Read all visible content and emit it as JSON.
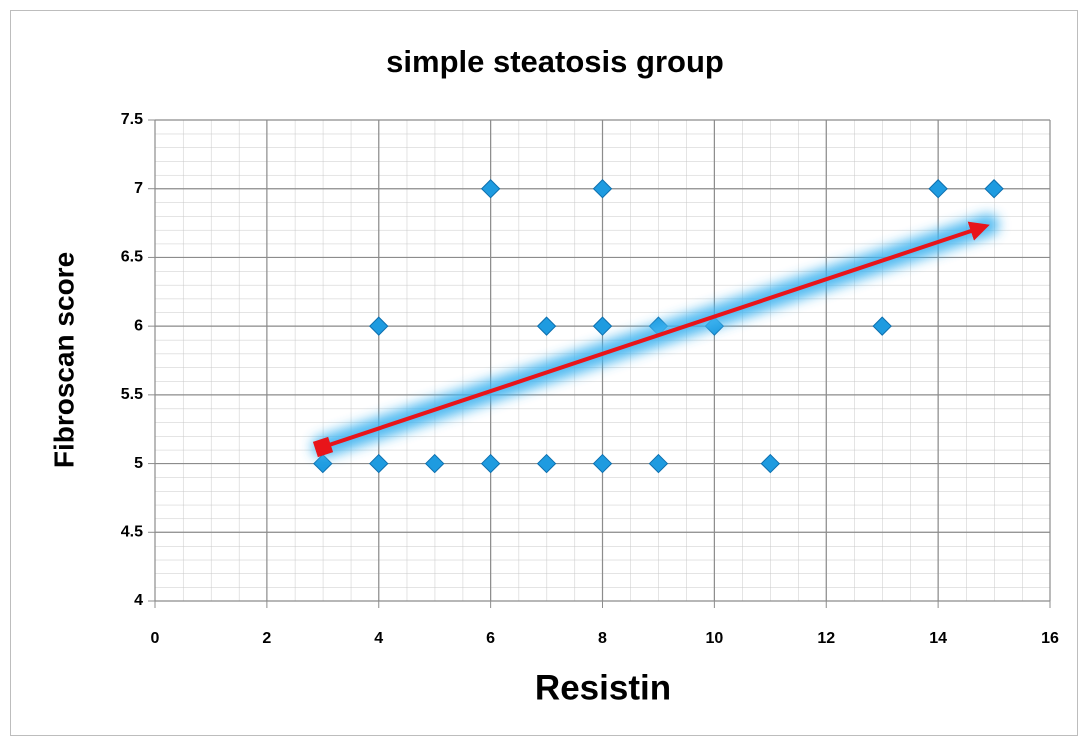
{
  "chart_data": {
    "type": "scatter",
    "title": "simple steatosis group",
    "x_label": "Resistin",
    "y_label": "Fibroscan score",
    "x": [
      3,
      4,
      5,
      6,
      7,
      8,
      9,
      11,
      4,
      7,
      8,
      9,
      10,
      13,
      6,
      8,
      14,
      15
    ],
    "values": [
      5,
      5,
      5,
      5,
      5,
      5,
      5,
      5,
      6,
      6,
      6,
      6,
      6,
      6,
      7,
      7,
      7,
      7
    ],
    "color": "#1e9be0",
    "xlim": [
      0,
      16
    ],
    "xticks": [
      0,
      2,
      4,
      6,
      8,
      10,
      12,
      14,
      16
    ],
    "ylim": [
      4,
      7.5
    ],
    "yticks": [
      4,
      4.5,
      5,
      5.5,
      6,
      6.5,
      7,
      7.5
    ],
    "grid": true
  }
}
